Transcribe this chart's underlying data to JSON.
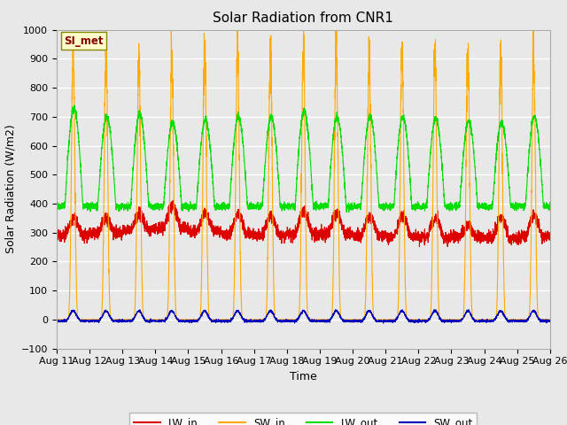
{
  "title": "Solar Radiation from CNR1",
  "xlabel": "Time",
  "ylabel": "Solar Radiation (W/m2)",
  "ylim": [
    -100,
    1000
  ],
  "annotation": "SI_met",
  "plot_bg_color": "#e8e8e8",
  "fig_bg_color": "#e8e8e8",
  "line_colors": {
    "LW_in": "#dd0000",
    "SW_in": "#ffaa00",
    "LW_out": "#00dd00",
    "SW_out": "#0000bb"
  },
  "x_tick_labels": [
    "Aug 11",
    "Aug 12",
    "Aug 13",
    "Aug 14",
    "Aug 15",
    "Aug 16",
    "Aug 17",
    "Aug 18",
    "Aug 19",
    "Aug 20",
    "Aug 21",
    "Aug 22",
    "Aug 23",
    "Aug 24",
    "Aug 25",
    "Aug 26"
  ],
  "num_days": 15,
  "points_per_day": 288,
  "title_fontsize": 11,
  "axis_fontsize": 9,
  "tick_fontsize": 8
}
